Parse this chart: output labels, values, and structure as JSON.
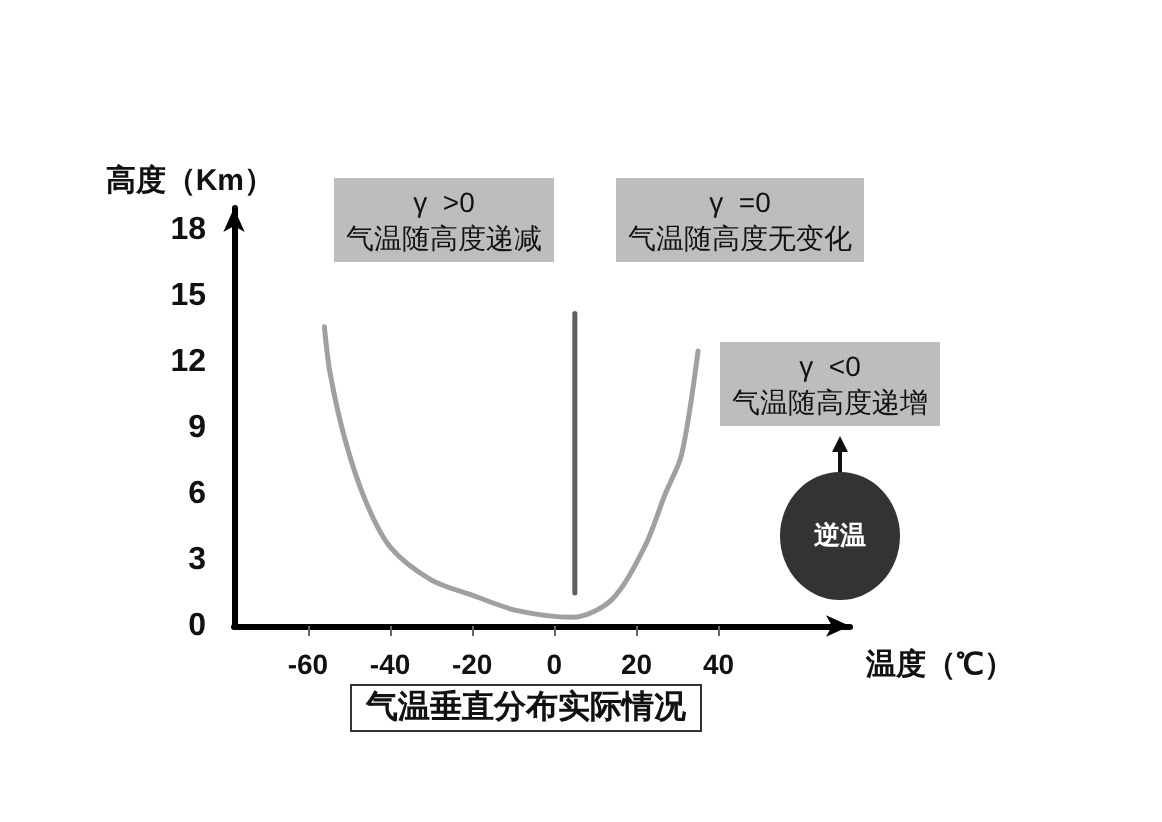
{
  "chart_data": {
    "type": "line",
    "title": "气温垂直分布实际情况",
    "xlabel": "温度（℃）",
    "ylabel": "高度（Km）",
    "xlim": [
      -78,
      72
    ],
    "xticks": [
      -60,
      -40,
      -20,
      0,
      20,
      40
    ],
    "ylim": [
      0,
      19
    ],
    "yticks": [
      0,
      3,
      6,
      9,
      12,
      15,
      18
    ],
    "grid": false,
    "marker": "none",
    "line_style": "solid",
    "series": [
      {
        "color": "#a0a0a0",
        "x": [
          -56,
          -54.6,
          -51,
          -46,
          -40,
          -30,
          -20,
          -9,
          4.4,
          14,
          22,
          27,
          31,
          35
        ],
        "values": [
          13.6,
          11.5,
          8.5,
          5.7,
          3.6,
          2.1,
          1.4,
          0.7,
          0.4,
          1.2,
          3.6,
          6,
          7.8,
          12.5
        ]
      },
      {
        "color": "#606060",
        "x": [
          5,
          5
        ],
        "values": [
          1.5,
          14.2
        ]
      }
    ],
    "annotations": [
      "γ  >0\n气温随高度递减",
      "γ  =0\n气温随高度无变化",
      "γ  <0\n气温随高度递增",
      "逆温"
    ]
  }
}
